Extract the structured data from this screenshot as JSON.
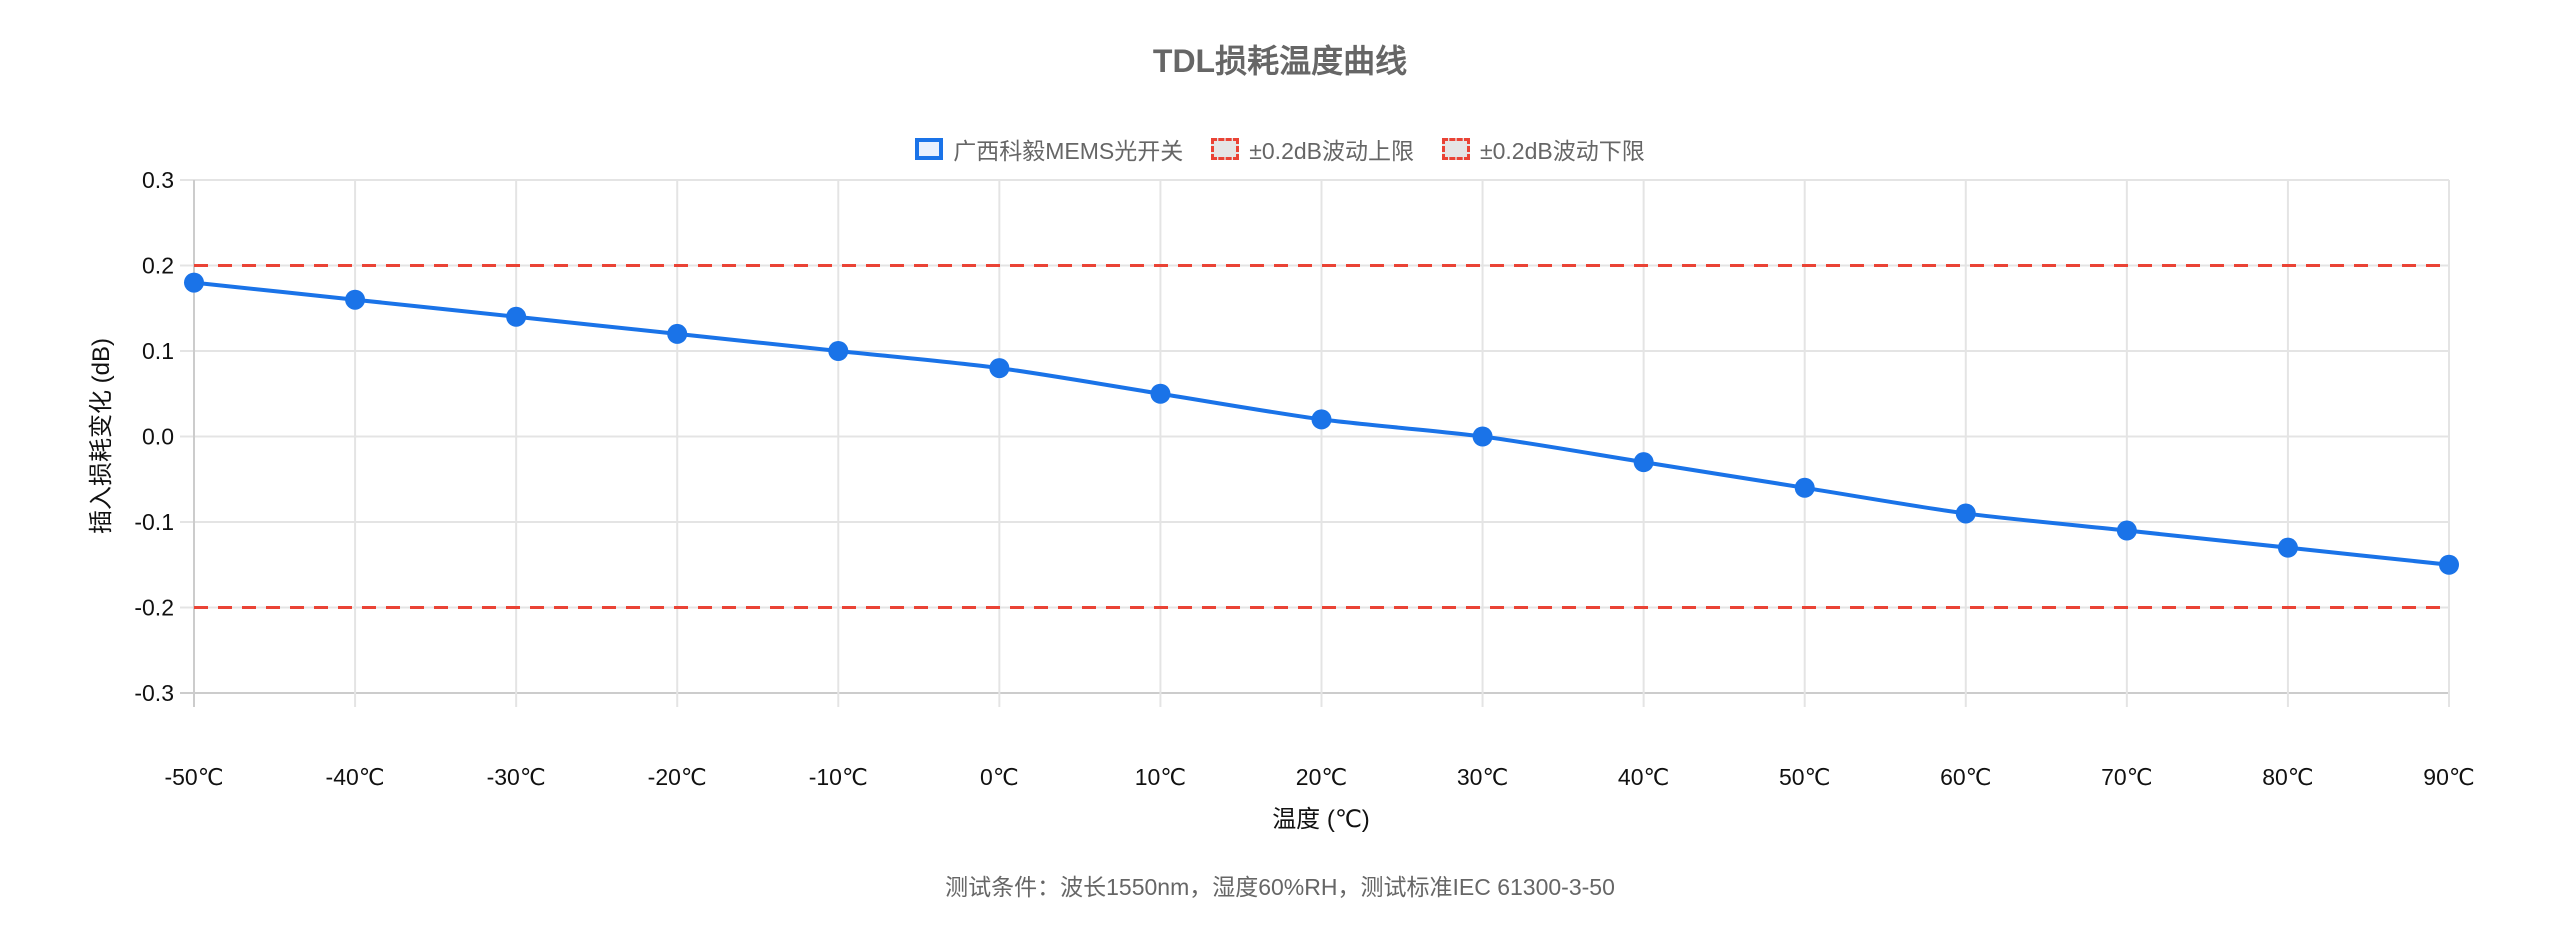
{
  "chart_data": {
    "type": "line",
    "title": "TDL损耗温度曲线",
    "xlabel": "温度 (℃)",
    "ylabel": "插入损耗变化 (dB)",
    "categories": [
      "-50℃",
      "-40℃",
      "-30℃",
      "-20℃",
      "-10℃",
      "0℃",
      "10℃",
      "20℃",
      "30℃",
      "40℃",
      "50℃",
      "60℃",
      "70℃",
      "80℃",
      "90℃"
    ],
    "ylim": [
      -0.3,
      0.3
    ],
    "yticks": [
      "0.3",
      "0.2",
      "0.1",
      "0.0",
      "-0.1",
      "-0.2",
      "-0.3"
    ],
    "grid": true,
    "legend_position": "top",
    "series": [
      {
        "name": "广西科毅MEMS光开关",
        "color": "#1a73e8",
        "style": "solid",
        "values": [
          0.18,
          0.16,
          0.14,
          0.12,
          0.1,
          0.08,
          0.05,
          0.02,
          0.0,
          -0.03,
          -0.06,
          -0.09,
          -0.11,
          -0.13,
          -0.15
        ]
      },
      {
        "name": "±0.2dB波动上限",
        "color": "#ea4335",
        "style": "dashed",
        "values": [
          0.2,
          0.2,
          0.2,
          0.2,
          0.2,
          0.2,
          0.2,
          0.2,
          0.2,
          0.2,
          0.2,
          0.2,
          0.2,
          0.2,
          0.2
        ]
      },
      {
        "name": "±0.2dB波动下限",
        "color": "#ea4335",
        "style": "dashed",
        "values": [
          -0.2,
          -0.2,
          -0.2,
          -0.2,
          -0.2,
          -0.2,
          -0.2,
          -0.2,
          -0.2,
          -0.2,
          -0.2,
          -0.2,
          -0.2,
          -0.2,
          -0.2
        ]
      }
    ],
    "footnote": "测试条件：波长1550nm，湿度60%RH，测试标准IEC 61300-3-50"
  }
}
